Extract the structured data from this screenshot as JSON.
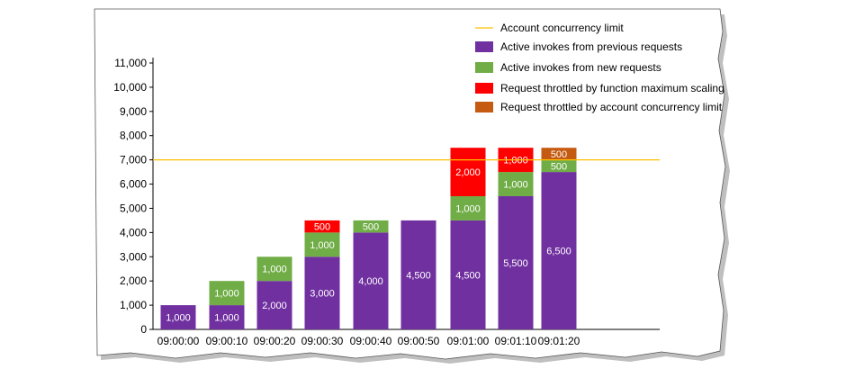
{
  "chart_data": {
    "type": "bar",
    "stacked": true,
    "categories": [
      "09:00:00",
      "09:00:10",
      "09:00:20",
      "09:00:30",
      "09:00:40",
      "09:00:50",
      "09:01:00",
      "09:01:10",
      "09:01:20"
    ],
    "series": [
      {
        "name": "Active invokes from previous requests",
        "color": "#7030a0",
        "values": [
          1000,
          1000,
          2000,
          3000,
          4000,
          4500,
          4500,
          5500,
          6500
        ]
      },
      {
        "name": "Active invokes from new requests",
        "color": "#70ad47",
        "values": [
          0,
          1000,
          1000,
          1000,
          500,
          0,
          1000,
          1000,
          500
        ]
      },
      {
        "name": "Request throttled by function maximum scaling",
        "color": "#ff0000",
        "values": [
          0,
          0,
          0,
          500,
          0,
          0,
          2000,
          1000,
          0
        ]
      },
      {
        "name": "Request throttled by account concurrency limit",
        "color": "#c55a11",
        "values": [
          0,
          0,
          0,
          0,
          0,
          0,
          0,
          0,
          500
        ]
      }
    ],
    "data_labels": [
      [
        "1,000",
        "1,000",
        "2,000",
        "3,000",
        "4,000",
        "4,500",
        "4,500",
        "5,500",
        "6,500"
      ],
      [
        "",
        "1,000",
        "1,000",
        "1,000",
        "500",
        "",
        "1,000",
        "1,000",
        "500"
      ],
      [
        "",
        "",
        "",
        "500",
        "",
        "",
        "2,000",
        "1,000",
        ""
      ],
      [
        "",
        "",
        "",
        "",
        "",
        "",
        "",
        "",
        "500"
      ]
    ],
    "reference_line": {
      "name": "Account concurrency limit",
      "value": 7000,
      "color": "#ffc000"
    },
    "ylim": [
      0,
      11000
    ],
    "yticks": [
      0,
      1000,
      2000,
      3000,
      4000,
      5000,
      6000,
      7000,
      8000,
      9000,
      10000,
      11000
    ],
    "ytick_labels": [
      "0",
      "1,000",
      "2,000",
      "3,000",
      "4,000",
      "5,000",
      "6,000",
      "7,000",
      "8,000",
      "9,000",
      "10,000",
      "11,000"
    ],
    "legend_position": "top-right",
    "grid": false,
    "title": "",
    "xlabel": "",
    "ylabel": ""
  }
}
